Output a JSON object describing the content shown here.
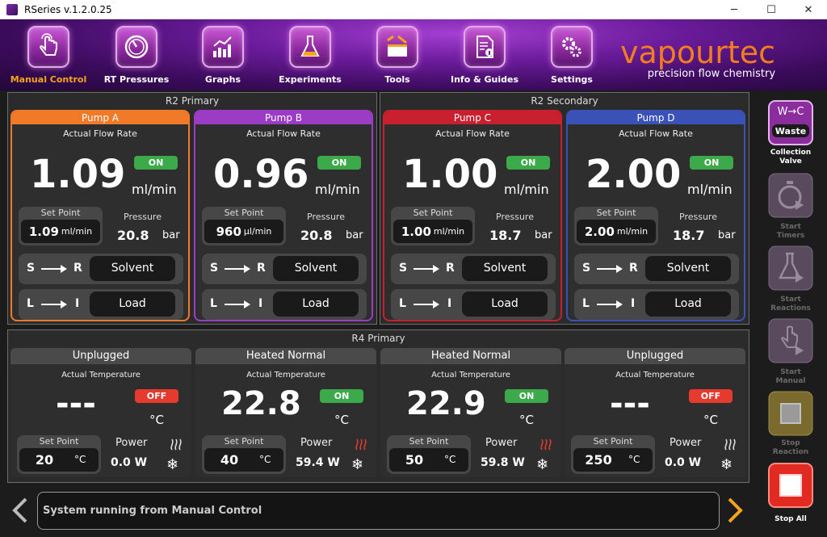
{
  "window": {
    "title": "RSeries v.1.2.0.25",
    "minimize": "─",
    "maximize": "☐",
    "close": "✕"
  },
  "nav": [
    {
      "label": "Manual Control",
      "icon": "hand-pointer-icon",
      "active": true
    },
    {
      "label": "RT Pressures",
      "icon": "gauge-icon",
      "active": false
    },
    {
      "label": "Graphs",
      "icon": "bar-chart-icon",
      "active": false
    },
    {
      "label": "Experiments",
      "icon": "flask-icon",
      "active": false
    },
    {
      "label": "Tools",
      "icon": "toolbox-icon",
      "active": false
    },
    {
      "label": "Info & Guides",
      "icon": "document-info-icon",
      "active": false
    },
    {
      "label": "Settings",
      "icon": "gears-icon",
      "active": false
    }
  ],
  "brand": {
    "name": "vapourtec",
    "tagline": "precision flow chemistry"
  },
  "r2_primary": {
    "title": "R2 Primary"
  },
  "r2_secondary": {
    "title": "R2 Secondary"
  },
  "r4_primary": {
    "title": "R4 Primary"
  },
  "pumps": [
    {
      "name": "Pump A",
      "color": "#f07a28",
      "flow_label": "Actual Flow Rate",
      "flow": "1.09",
      "flow_unit": "ml/min",
      "state": "ON",
      "sp_label": "Set Point",
      "sp_value": "1.09",
      "sp_unit": "ml/min",
      "pressure_label": "Pressure",
      "pressure": "20.8",
      "pressure_unit": "bar",
      "valve1_from": "S",
      "valve1_to": "R",
      "valve1_value": "Solvent",
      "valve2_from": "L",
      "valve2_to": "I",
      "valve2_value": "Load"
    },
    {
      "name": "Pump B",
      "color": "#9a3cc4",
      "flow_label": "Actual Flow Rate",
      "flow": "0.96",
      "flow_unit": "ml/min",
      "state": "ON",
      "sp_label": "Set Point",
      "sp_value": "960",
      "sp_unit": "µl/min",
      "pressure_label": "Pressure",
      "pressure": "20.8",
      "pressure_unit": "bar",
      "valve1_from": "S",
      "valve1_to": "R",
      "valve1_value": "Solvent",
      "valve2_from": "L",
      "valve2_to": "I",
      "valve2_value": "Load"
    },
    {
      "name": "Pump C",
      "color": "#c8202e",
      "flow_label": "Actual Flow Rate",
      "flow": "1.00",
      "flow_unit": "ml/min",
      "state": "ON",
      "sp_label": "Set Point",
      "sp_value": "1.00",
      "sp_unit": "ml/min",
      "pressure_label": "Pressure",
      "pressure": "18.7",
      "pressure_unit": "bar",
      "valve1_from": "S",
      "valve1_to": "R",
      "valve1_value": "Solvent",
      "valve2_from": "L",
      "valve2_to": "I",
      "valve2_value": "Load"
    },
    {
      "name": "Pump D",
      "color": "#3a52b8",
      "flow_label": "Actual Flow Rate",
      "flow": "2.00",
      "flow_unit": "ml/min",
      "state": "ON",
      "sp_label": "Set Point",
      "sp_value": "2.00",
      "sp_unit": "ml/min",
      "pressure_label": "Pressure",
      "pressure": "18.7",
      "pressure_unit": "bar",
      "valve1_from": "S",
      "valve1_to": "R",
      "valve1_value": "Solvent",
      "valve2_from": "L",
      "valve2_to": "I",
      "valve2_value": "Load"
    }
  ],
  "heaters": [
    {
      "status": "Unplugged",
      "temp_label": "Actual Temperature",
      "temp": "---",
      "state": "OFF",
      "temp_unit": "°C",
      "sp_label": "Set Point",
      "sp_value": "20",
      "sp_unit": "°C",
      "power_label": "Power",
      "power": "0.0 W",
      "heating": false
    },
    {
      "status": "Heated Normal",
      "temp_label": "Actual Temperature",
      "temp": "22.8",
      "state": "ON",
      "temp_unit": "°C",
      "sp_label": "Set Point",
      "sp_value": "40",
      "sp_unit": "°C",
      "power_label": "Power",
      "power": "59.4 W",
      "heating": true
    },
    {
      "status": "Heated Normal",
      "temp_label": "Actual Temperature",
      "temp": "22.9",
      "state": "ON",
      "temp_unit": "°C",
      "sp_label": "Set Point",
      "sp_value": "50",
      "sp_unit": "°C",
      "power_label": "Power",
      "power": "59.8 W",
      "heating": true
    },
    {
      "status": "Unplugged",
      "temp_label": "Actual Temperature",
      "temp": "---",
      "state": "OFF",
      "temp_unit": "°C",
      "sp_label": "Set Point",
      "sp_value": "250",
      "sp_unit": "°C",
      "power_label": "Power",
      "power": "0.0 W",
      "heating": false
    }
  ],
  "side": {
    "collection_top": "W→C",
    "collection_badge": "Waste",
    "collection_label": [
      "Collection",
      "Valve"
    ],
    "start_timers": [
      "Start",
      "Timers"
    ],
    "start_reactions": [
      "Start",
      "Reactions"
    ],
    "start_manual": [
      "Start",
      "Manual"
    ],
    "stop_reaction": [
      "Stop",
      "Reaction"
    ],
    "stop_all": "Stop All"
  },
  "status": {
    "message": "System running from Manual Control"
  },
  "colors": {
    "on": "#3ca94a",
    "off": "#e73a2e",
    "accent": "#f27d1e",
    "active_nav": "#f7a31c"
  }
}
